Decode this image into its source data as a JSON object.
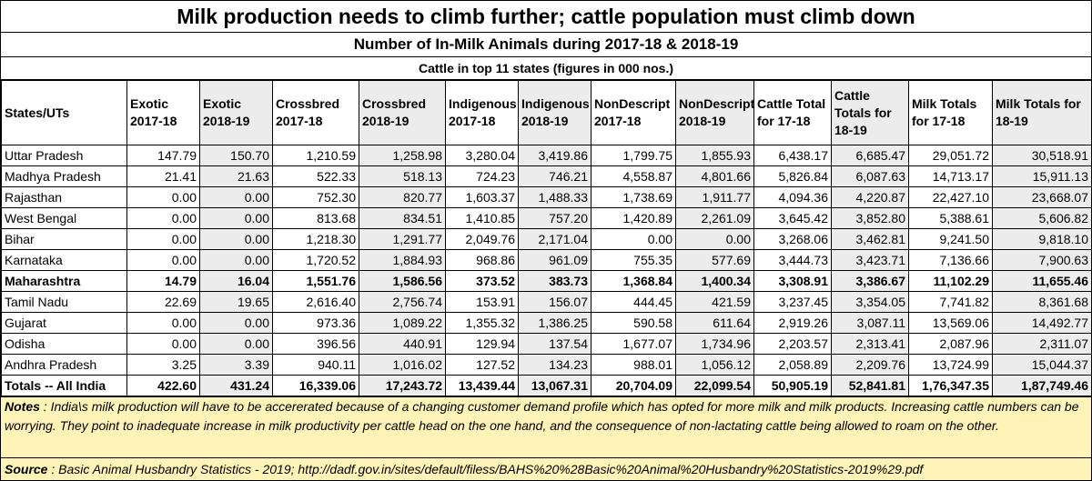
{
  "chart_data": {
    "type": "table",
    "title": "Milk production needs to climb further; cattle population must climb down",
    "subtitle": "Number of In-Milk Animals during 2017-18 & 2018-19",
    "note": "Cattle in top 11 states   (figures in 000 nos.)",
    "columns": [
      "States/UTs",
      "Exotic 2017-18",
      "Exotic 2018-19",
      "Crossbred 2017-18",
      "Crossbred 2018-19",
      "Indigenous 2017-18",
      "Indigenous 2018-19",
      "NonDescript 2017-18",
      "NonDescript 2018-19",
      "Cattle Total for 17-18",
      "Cattle Totals for 18-19",
      "Milk Totals for 17-18",
      "Milk Totals for 18-19"
    ],
    "rows": [
      [
        "Uttar Pradesh",
        "147.79",
        "150.70",
        "1,210.59",
        "1,258.98",
        "3,280.04",
        "3,419.86",
        "1,799.75",
        "1,855.93",
        "6,438.17",
        "6,685.47",
        "29,051.72",
        "30,518.91"
      ],
      [
        "Madhya Pradesh",
        "21.41",
        "21.63",
        "522.33",
        "518.13",
        "724.23",
        "746.21",
        "4,558.87",
        "4,801.66",
        "5,826.84",
        "6,087.63",
        "14,713.17",
        "15,911.13"
      ],
      [
        "Rajasthan",
        "0.00",
        "0.00",
        "752.30",
        "820.77",
        "1,603.37",
        "1,488.33",
        "1,738.69",
        "1,911.77",
        "4,094.36",
        "4,220.87",
        "22,427.10",
        "23,668.07"
      ],
      [
        "West Bengal",
        "0.00",
        "0.00",
        "813.68",
        "834.51",
        "1,410.85",
        "757.20",
        "1,420.89",
        "2,261.09",
        "3,645.42",
        "3,852.80",
        "5,388.61",
        "5,606.82"
      ],
      [
        "Bihar",
        "0.00",
        "0.00",
        "1,218.30",
        "1,291.77",
        "2,049.76",
        "2,171.04",
        "0.00",
        "0.00",
        "3,268.06",
        "3,462.81",
        "9,241.50",
        "9,818.10"
      ],
      [
        "Karnataka",
        "0.00",
        "0.00",
        "1,720.52",
        "1,884.93",
        "968.86",
        "961.09",
        "755.35",
        "577.69",
        "3,444.73",
        "3,423.71",
        "7,136.66",
        "7,900.63"
      ],
      [
        "Maharashtra",
        "14.79",
        "16.04",
        "1,551.76",
        "1,586.56",
        "373.52",
        "383.73",
        "1,368.84",
        "1,400.34",
        "3,308.91",
        "3,386.67",
        "11,102.29",
        "11,655.46"
      ],
      [
        "Tamil Nadu",
        "22.69",
        "19.65",
        "2,616.40",
        "2,756.74",
        "153.91",
        "156.07",
        "444.45",
        "421.59",
        "3,237.45",
        "3,354.05",
        "7,741.82",
        "8,361.68"
      ],
      [
        "Gujarat",
        "0.00",
        "0.00",
        "973.36",
        "1,089.22",
        "1,355.32",
        "1,386.25",
        "590.58",
        "611.64",
        "2,919.26",
        "3,087.11",
        "13,569.06",
        "14,492.77"
      ],
      [
        "Odisha",
        "0.00",
        "0.00",
        "396.56",
        "440.91",
        "129.94",
        "137.54",
        "1,677.07",
        "1,734.96",
        "2,203.57",
        "2,313.41",
        "2,087.96",
        "2,311.07"
      ],
      [
        "Andhra Pradesh",
        "3.25",
        "3.39",
        "940.11",
        "1,016.02",
        "127.52",
        "134.23",
        "988.01",
        "1,056.12",
        "2,058.89",
        "2,209.76",
        "13,724.99",
        "15,044.37"
      ],
      [
        "Totals -- All India",
        "422.60",
        "431.24",
        "16,339.06",
        "17,243.72",
        "13,439.44",
        "13,067.31",
        "20,704.09",
        "22,099.54",
        "50,905.19",
        "52,841.81",
        "1,76,347.35",
        "1,87,749.46"
      ]
    ],
    "bold_rows": [
      "Maharashtra",
      "Totals -- All India"
    ]
  },
  "notes": {
    "label": "Notes",
    "text": " : India\\s milk production will have to be accererated because of a changing customer demand profile which has opted for more milk and milk products.  Increasing cattle numbers can be worrying.  They point to inadequate increase in milk productivity per cattle head on the one hand, and the consequence of non-lactating cattle being allowed to roam on the other."
  },
  "source": {
    "label": "Source",
    "text": " :  Basic Animal Husbandry Statistics - 2019; http://dadf.gov.in/sites/default/filess/BAHS%20%28Basic%20Animal%20Husbandry%20Statistics-2019%29.pdf"
  },
  "colors": {
    "notes_background": "#fff3b8",
    "shaded_column": "#ececec"
  }
}
